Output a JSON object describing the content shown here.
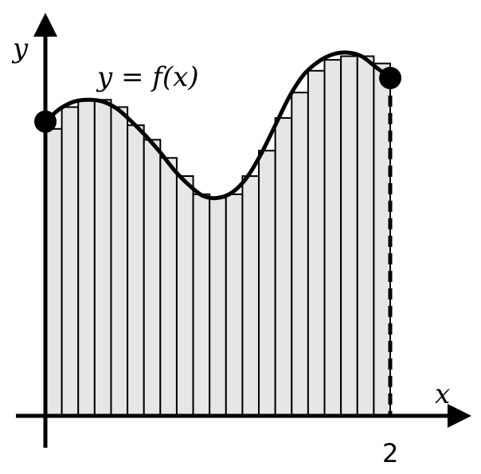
{
  "labels": {
    "y_axis": "y",
    "x_axis": "x",
    "function": "y = f(x)",
    "x_tick": "2"
  },
  "riemann": {
    "x_min": 0,
    "x_max": 2,
    "rectangle_count": 21,
    "rectangle_heights": [
      0.79,
      0.85,
      0.87,
      0.87,
      0.85,
      0.8,
      0.76,
      0.71,
      0.66,
      0.61,
      0.6,
      0.61,
      0.66,
      0.73,
      0.82,
      0.89,
      0.95,
      0.98,
      0.99,
      0.99,
      0.97
    ]
  },
  "curve": {
    "start_y": 0.81,
    "end_y": 0.93,
    "samples_y": [
      0.81,
      0.845,
      0.865,
      0.87,
      0.865,
      0.845,
      0.81,
      0.77,
      0.725,
      0.675,
      0.635,
      0.605,
      0.6,
      0.615,
      0.655,
      0.72,
      0.8,
      0.88,
      0.94,
      0.975,
      0.995,
      1.0,
      0.99,
      0.96,
      0.93
    ]
  },
  "colors": {
    "rect_fill": "#e6e6e6",
    "stroke": "#000000",
    "background": "#ffffff"
  }
}
